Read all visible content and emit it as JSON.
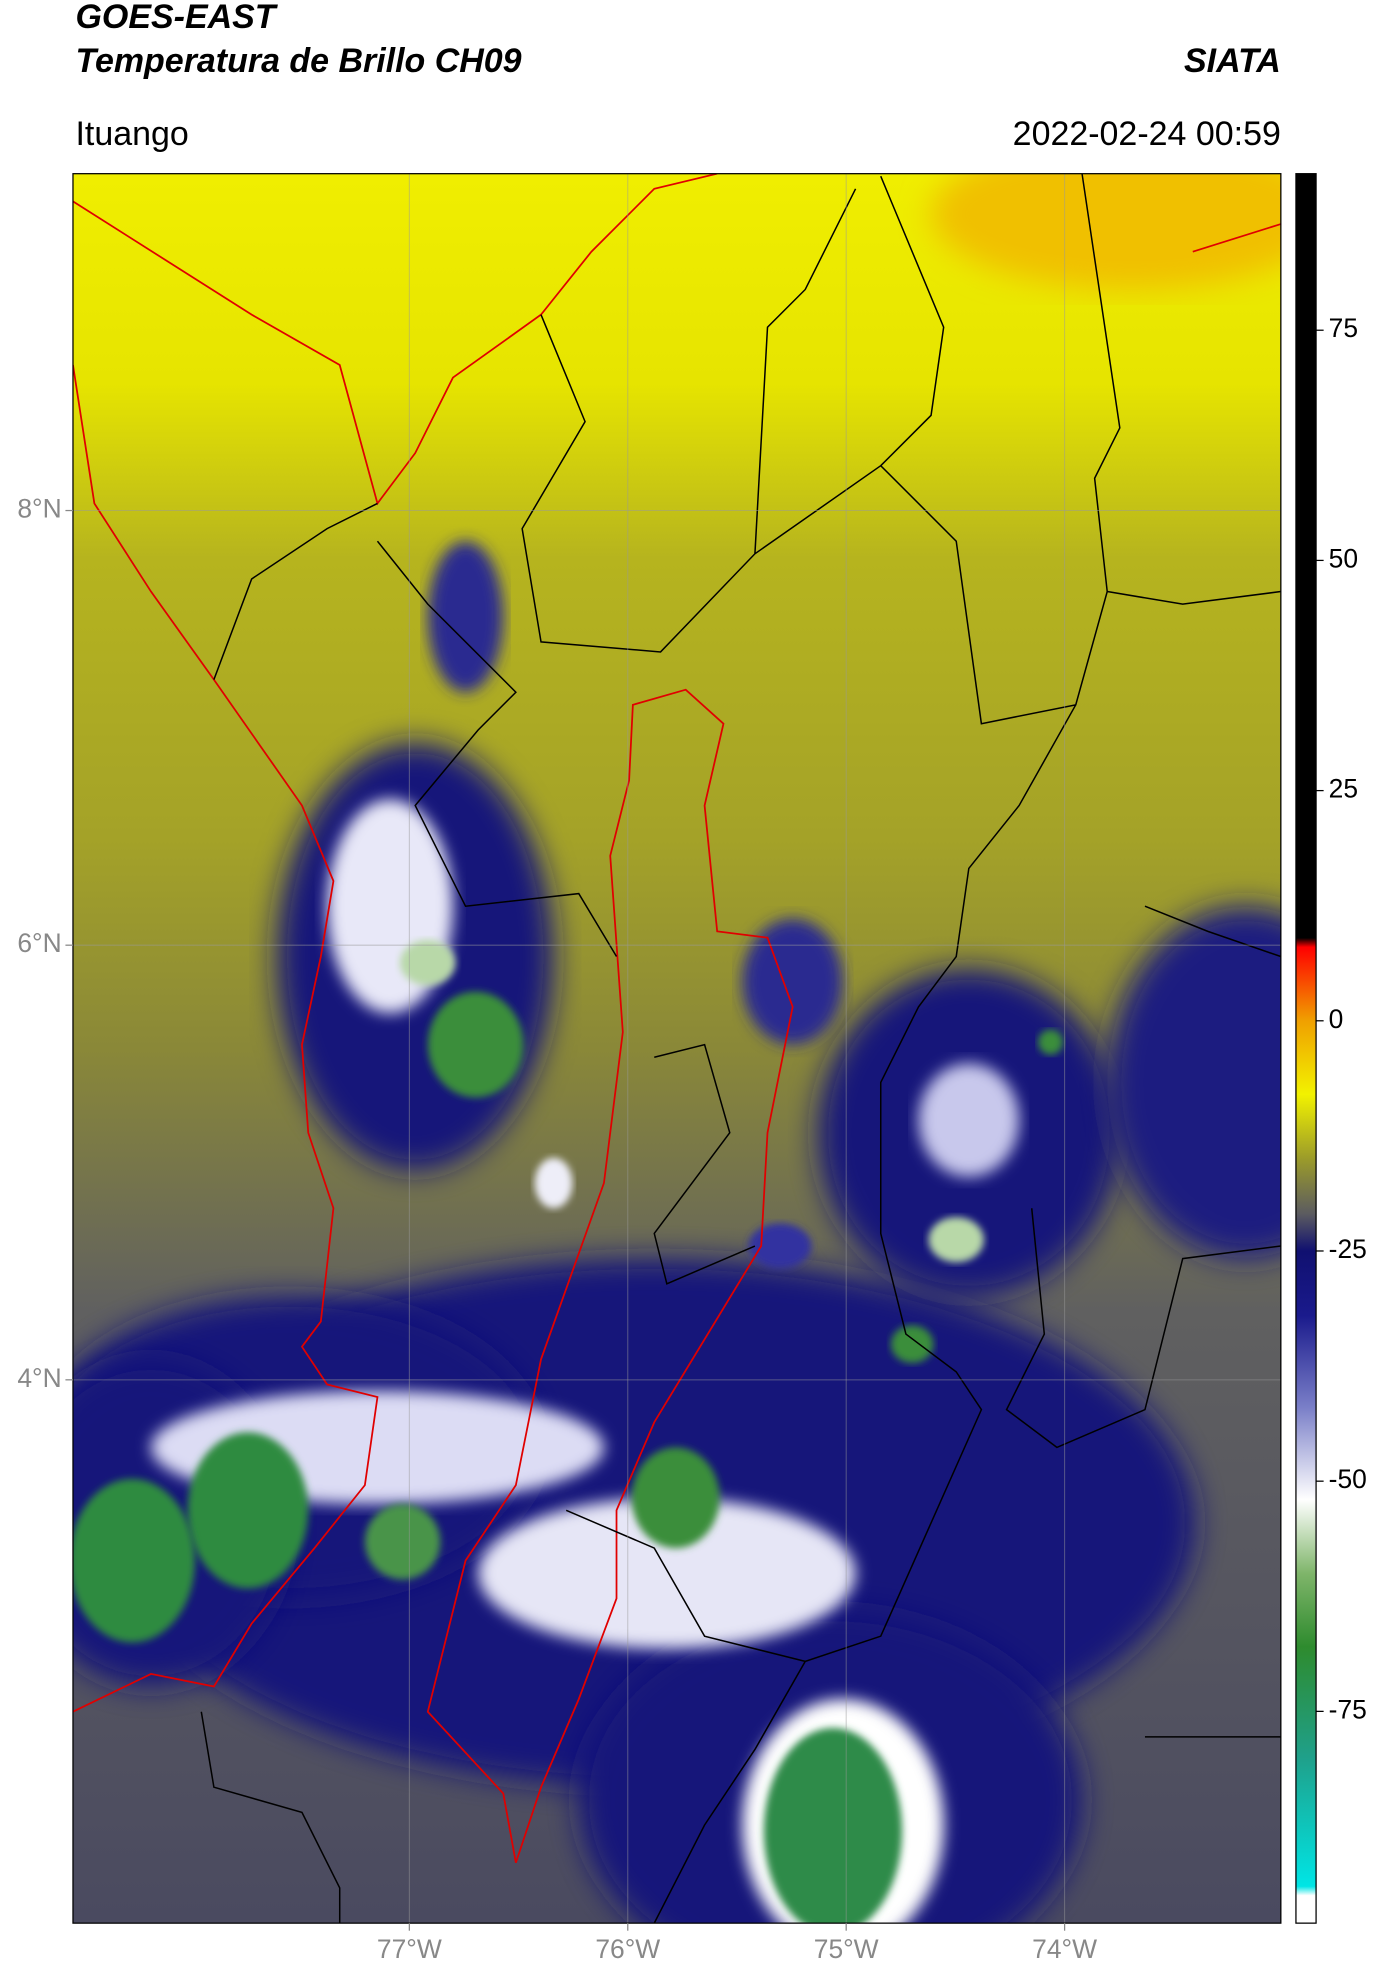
{
  "chart_data": {
    "type": "map",
    "title": "GOES-EAST",
    "subtitle": "Temperatura de Brillo CH09",
    "source": "SIATA",
    "location": "Ituango",
    "datetime": "2022-02-24 00:59",
    "xlim": [
      -78.54,
      -73.01
    ],
    "ylim": [
      1.5,
      9.55
    ],
    "xticks": [
      {
        "value": -77,
        "label": "77°W"
      },
      {
        "value": -76,
        "label": "76°W"
      },
      {
        "value": -75,
        "label": "75°W"
      },
      {
        "value": -74,
        "label": "74°W"
      }
    ],
    "yticks": [
      {
        "value": 4,
        "label": "4°N"
      },
      {
        "value": 6,
        "label": "6°N"
      },
      {
        "value": 8,
        "label": "8°N"
      }
    ],
    "grid": true,
    "colorbar": {
      "lim": [
        -98,
        92
      ],
      "ticks": [
        -75,
        -50,
        -25,
        0,
        25,
        50,
        75
      ],
      "colormap": [
        {
          "value": -98,
          "color": "#ffffff"
        },
        {
          "value": -95,
          "color": "#ffffff"
        },
        {
          "value": -94,
          "color": "#00e5e5"
        },
        {
          "value": -80,
          "color": "#1fa08a"
        },
        {
          "value": -68,
          "color": "#2e8b2e"
        },
        {
          "value": -60,
          "color": "#7fb56a"
        },
        {
          "value": -52,
          "color": "#ffffff"
        },
        {
          "value": -42,
          "color": "#7a7fc8"
        },
        {
          "value": -32,
          "color": "#1a1a8c"
        },
        {
          "value": -25,
          "color": "#101070"
        },
        {
          "value": -21,
          "color": "#5b5b60"
        },
        {
          "value": -15,
          "color": "#9b9b2a"
        },
        {
          "value": -8,
          "color": "#f2f200"
        },
        {
          "value": 0,
          "color": "#f0a000"
        },
        {
          "value": 8,
          "color": "#ff0000"
        },
        {
          "value": 9,
          "color": "#000000"
        },
        {
          "value": 92,
          "color": "#000000"
        }
      ]
    }
  }
}
